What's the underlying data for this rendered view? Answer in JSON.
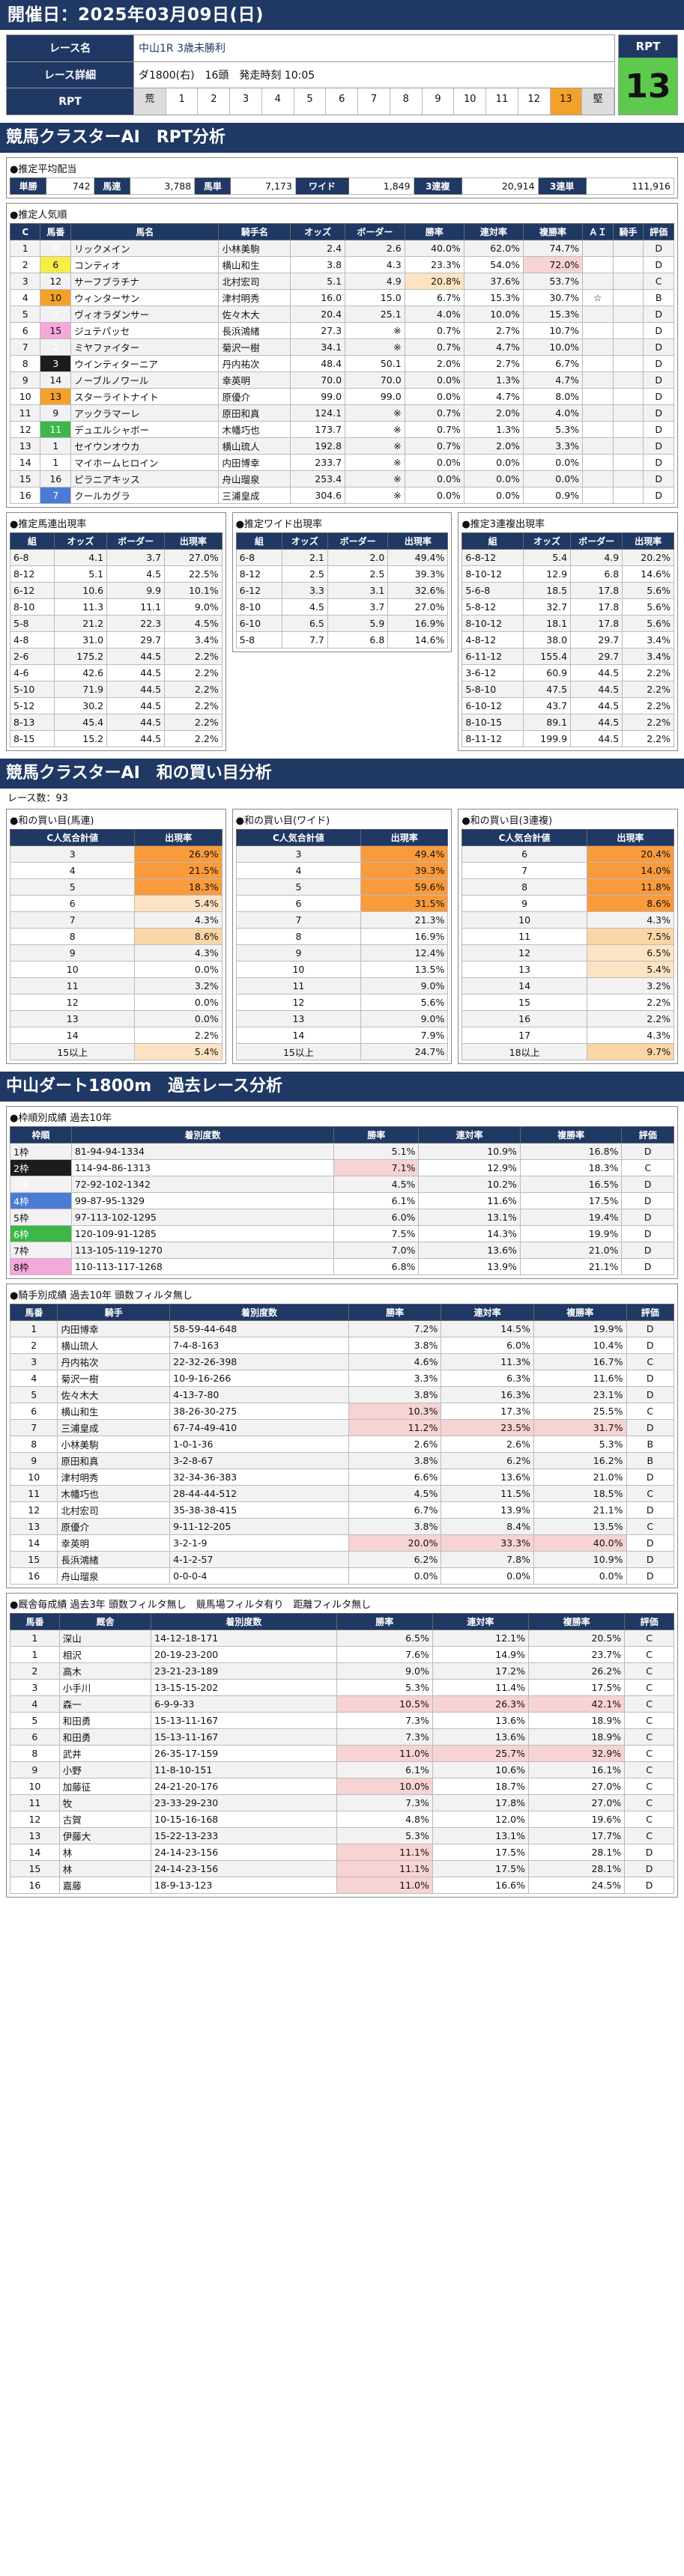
{
  "header": {
    "date": "開催日：2025年03月09日(日)"
  },
  "race": {
    "label_name": "レース名",
    "name": "中山1R 3歳未勝利",
    "label_detail": "レース詳細",
    "detail": "ダ1800(右)　16頭　発走時刻 10:05",
    "label_rpt": "RPT",
    "rpt_cells": [
      "荒",
      "1",
      "2",
      "3",
      "4",
      "5",
      "6",
      "7",
      "8",
      "9",
      "10",
      "11",
      "12",
      "13",
      "堅"
    ],
    "rpt_title": "RPT",
    "rpt_value": "13"
  },
  "s1": {
    "title": "競馬クラスターAI　RPT分析"
  },
  "payout": {
    "title": "●推定平均配当",
    "items": [
      [
        "単勝",
        "742"
      ],
      [
        "馬連",
        "3,788"
      ],
      [
        "馬単",
        "7,173"
      ],
      [
        "ワイド",
        "1,849"
      ],
      [
        "3連複",
        "20,914"
      ],
      [
        "3連単",
        "111,916"
      ]
    ]
  },
  "pop": {
    "title": "●推定人気順",
    "headers": [
      "C",
      "馬番",
      "馬名",
      "騎手名",
      "オッズ",
      "ボーダー",
      "勝率",
      "連対率",
      "複勝率",
      "ＡＩ",
      "騎手",
      "評価"
    ],
    "rows": [
      [
        "1",
        "8",
        "リックメイン",
        "小林美駒",
        "2.4",
        "2.6",
        "40.0%",
        "62.0%",
        "74.7%",
        "",
        "",
        "D",
        6,
        false
      ],
      [
        "2",
        "6",
        "コンティオ",
        "横山和生",
        "3.8",
        "4.3",
        "23.3%",
        "54.0%",
        "72.0%",
        "",
        "",
        "D",
        5,
        false
      ],
      [
        "3",
        "12",
        "サーフブラチナ",
        "北村宏司",
        "5.1",
        "4.9",
        "20.8%",
        "37.6%",
        "53.7%",
        "",
        "",
        "C",
        8,
        true
      ],
      [
        "4",
        "10",
        "ウィンターサン",
        "津村明秀",
        "16.0",
        "15.0",
        "6.7%",
        "15.3%",
        "30.7%",
        "☆",
        "",
        "B",
        7,
        false
      ],
      [
        "5",
        "4",
        "ヴィオラダンサー",
        "佐々木大",
        "20.4",
        "25.1",
        "4.0%",
        "10.0%",
        "15.3%",
        "",
        "",
        "D",
        3,
        false
      ],
      [
        "6",
        "15",
        "ジュテパッセ",
        "長浜鴻緒",
        "27.3",
        "※",
        "0.7%",
        "2.7%",
        "10.7%",
        "",
        "",
        "D",
        8,
        false
      ],
      [
        "7",
        "2",
        "ミヤファイター",
        "菊沢一樹",
        "34.1",
        "※",
        "0.7%",
        "4.7%",
        "10.0%",
        "",
        "",
        "D",
        2,
        false
      ],
      [
        "8",
        "3",
        "ウインティターニア",
        "丹内祐次",
        "48.4",
        "50.1",
        "2.0%",
        "2.7%",
        "6.7%",
        "",
        "",
        "D",
        2,
        false
      ],
      [
        "9",
        "14",
        "ノーブルノワール",
        "幸英明",
        "70.0",
        "70.0",
        "0.0%",
        "1.3%",
        "4.7%",
        "",
        "",
        "D",
        7,
        false
      ],
      [
        "10",
        "13",
        "スターライトナイト",
        "原優介",
        "99.0",
        "99.0",
        "0.0%",
        "4.7%",
        "8.0%",
        "",
        "",
        "D",
        7,
        false
      ],
      [
        "11",
        "9",
        "アックラマーレ",
        "原田和真",
        "124.1",
        "※",
        "0.7%",
        "2.0%",
        "4.0%",
        "",
        "",
        "D",
        5,
        false
      ],
      [
        "12",
        "11",
        "デュエルシャボー",
        "木幡巧也",
        "173.7",
        "※",
        "0.7%",
        "1.3%",
        "5.3%",
        "",
        "",
        "D",
        6,
        false
      ],
      [
        "13",
        "1",
        "セイウンオウカ",
        "横山琉人",
        "192.8",
        "※",
        "0.7%",
        "2.0%",
        "3.3%",
        "",
        "",
        "D",
        1,
        false
      ],
      [
        "14",
        "1",
        "マイホームヒロイン",
        "内田博幸",
        "233.7",
        "※",
        "0.0%",
        "0.0%",
        "0.0%",
        "",
        "",
        "D",
        1,
        false
      ],
      [
        "15",
        "16",
        "ピラニアキッス",
        "舟山瑠泉",
        "253.4",
        "※",
        "0.0%",
        "0.0%",
        "0.0%",
        "",
        "",
        "D",
        8,
        false
      ],
      [
        "16",
        "7",
        "クールカグラ",
        "三浦皇成",
        "304.6",
        "※",
        "0.0%",
        "0.0%",
        "0.9%",
        "",
        "",
        "D",
        4,
        false
      ]
    ]
  },
  "umaren": {
    "title": "●推定馬連出現率",
    "headers": [
      "組",
      "オッズ",
      "ボーダー",
      "出現率"
    ],
    "rows": [
      [
        "6-8",
        "4.1",
        "3.7",
        "27.0%"
      ],
      [
        "8-12",
        "5.1",
        "4.5",
        "22.5%"
      ],
      [
        "6-12",
        "10.6",
        "9.9",
        "10.1%"
      ],
      [
        "8-10",
        "11.3",
        "11.1",
        "9.0%"
      ],
      [
        "5-8",
        "21.2",
        "22.3",
        "4.5%"
      ],
      [
        "4-8",
        "31.0",
        "29.7",
        "3.4%"
      ],
      [
        "2-6",
        "175.2",
        "44.5",
        "2.2%"
      ],
      [
        "4-6",
        "42.6",
        "44.5",
        "2.2%"
      ],
      [
        "5-10",
        "71.9",
        "44.5",
        "2.2%"
      ],
      [
        "5-12",
        "30.2",
        "44.5",
        "2.2%"
      ],
      [
        "8-13",
        "45.4",
        "44.5",
        "2.2%"
      ],
      [
        "8-15",
        "15.2",
        "44.5",
        "2.2%"
      ]
    ]
  },
  "wide": {
    "title": "●推定ワイド出現率",
    "headers": [
      "組",
      "オッズ",
      "ボーダー",
      "出現率"
    ],
    "rows": [
      [
        "6-8",
        "2.1",
        "2.0",
        "49.4%"
      ],
      [
        "8-12",
        "2.5",
        "2.5",
        "39.3%"
      ],
      [
        "6-12",
        "3.3",
        "3.1",
        "32.6%"
      ],
      [
        "8-10",
        "4.5",
        "3.7",
        "27.0%"
      ],
      [
        "6-10",
        "6.5",
        "5.9",
        "16.9%"
      ],
      [
        "5-8",
        "7.7",
        "6.8",
        "14.6%"
      ]
    ]
  },
  "sanfuku": {
    "title": "●推定3連複出現率",
    "headers": [
      "組",
      "オッズ",
      "ボーダー",
      "出現率"
    ],
    "rows": [
      [
        "6-8-12",
        "5.4",
        "4.9",
        "20.2%"
      ],
      [
        "8-10-12",
        "12.9",
        "6.8",
        "14.6%"
      ],
      [
        "5-6-8",
        "18.5",
        "17.8",
        "5.6%"
      ],
      [
        "5-8-12",
        "32.7",
        "17.8",
        "5.6%"
      ],
      [
        "8-10-12",
        "18.1",
        "17.8",
        "5.6%"
      ],
      [
        "4-8-12",
        "38.0",
        "29.7",
        "3.4%"
      ],
      [
        "6-11-12",
        "155.4",
        "29.7",
        "3.4%"
      ],
      [
        "3-6-12",
        "60.9",
        "44.5",
        "2.2%"
      ],
      [
        "5-8-10",
        "47.5",
        "44.5",
        "2.2%"
      ],
      [
        "6-10-12",
        "43.7",
        "44.5",
        "2.2%"
      ],
      [
        "8-10-15",
        "89.1",
        "44.5",
        "2.2%"
      ],
      [
        "8-11-12",
        "199.9",
        "44.5",
        "2.2%"
      ]
    ]
  },
  "s2": {
    "title": "競馬クラスターAI　和の買い目分析",
    "count": "レース数：93"
  },
  "sum_umaren": {
    "title": "●和の買い目(馬連)",
    "h1": "C人気合計値",
    "h2": "出現率",
    "rows": [
      [
        "3",
        "26.9%",
        1
      ],
      [
        "4",
        "21.5%",
        1
      ],
      [
        "5",
        "18.3%",
        1
      ],
      [
        "6",
        "5.4%",
        3
      ],
      [
        "7",
        "4.3%",
        0
      ],
      [
        "8",
        "8.6%",
        2
      ],
      [
        "9",
        "4.3%",
        0
      ],
      [
        "10",
        "0.0%",
        0
      ],
      [
        "11",
        "3.2%",
        0
      ],
      [
        "12",
        "0.0%",
        0
      ],
      [
        "13",
        "0.0%",
        0
      ],
      [
        "14",
        "2.2%",
        0
      ],
      [
        "15以上",
        "5.4%",
        3
      ]
    ]
  },
  "sum_wide": {
    "title": "●和の買い目(ワイド)",
    "h1": "C人気合計値",
    "h2": "出現率",
    "rows": [
      [
        "3",
        "49.4%",
        1
      ],
      [
        "4",
        "39.3%",
        1
      ],
      [
        "5",
        "59.6%",
        1
      ],
      [
        "6",
        "31.5%",
        1
      ],
      [
        "7",
        "21.3%",
        0
      ],
      [
        "8",
        "16.9%",
        0
      ],
      [
        "9",
        "12.4%",
        0
      ],
      [
        "10",
        "13.5%",
        0
      ],
      [
        "11",
        "9.0%",
        0
      ],
      [
        "12",
        "5.6%",
        0
      ],
      [
        "13",
        "9.0%",
        0
      ],
      [
        "14",
        "7.9%",
        0
      ],
      [
        "15以上",
        "24.7%",
        0
      ]
    ]
  },
  "sum_sanfuku": {
    "title": "●和の買い目(3連複)",
    "h1": "C人気合計値",
    "h2": "出現率",
    "rows": [
      [
        "6",
        "20.4%",
        1
      ],
      [
        "7",
        "14.0%",
        1
      ],
      [
        "8",
        "11.8%",
        1
      ],
      [
        "9",
        "8.6%",
        1
      ],
      [
        "10",
        "4.3%",
        0
      ],
      [
        "11",
        "7.5%",
        2
      ],
      [
        "12",
        "6.5%",
        3
      ],
      [
        "13",
        "5.4%",
        3
      ],
      [
        "14",
        "3.2%",
        0
      ],
      [
        "15",
        "2.2%",
        0
      ],
      [
        "16",
        "2.2%",
        0
      ],
      [
        "17",
        "4.3%",
        0
      ],
      [
        "18以上",
        "9.7%",
        2
      ]
    ]
  },
  "s3": {
    "title": "中山ダート1800m　過去レース分析"
  },
  "waku": {
    "title": "●枠順別成績 過去10年",
    "headers": [
      "枠順",
      "着別度数",
      "勝率",
      "連対率",
      "複勝率",
      "評価"
    ],
    "rows": [
      [
        "1枠",
        "81-94-94-1334",
        "5.1%",
        "10.9%",
        "16.8%",
        "D",
        1
      ],
      [
        "2枠",
        "114-94-86-1313",
        "7.1%",
        "12.9%",
        "18.3%",
        "C",
        2
      ],
      [
        "3枠",
        "72-92-102-1342",
        "4.5%",
        "10.2%",
        "16.5%",
        "D",
        3
      ],
      [
        "4枠",
        "99-87-95-1329",
        "6.1%",
        "11.6%",
        "17.5%",
        "D",
        4
      ],
      [
        "5枠",
        "97-113-102-1295",
        "6.0%",
        "13.1%",
        "19.4%",
        "D",
        5
      ],
      [
        "6枠",
        "120-109-91-1285",
        "7.5%",
        "14.3%",
        "19.9%",
        "D",
        6
      ],
      [
        "7枠",
        "113-105-119-1270",
        "7.0%",
        "13.6%",
        "21.0%",
        "D",
        7
      ],
      [
        "8枠",
        "110-113-117-1268",
        "6.8%",
        "13.9%",
        "21.1%",
        "D",
        8
      ]
    ]
  },
  "jockey": {
    "title": "●騎手別成績 過去10年 頭数フィルタ無し",
    "headers": [
      "馬番",
      "騎手",
      "着別度数",
      "勝率",
      "連対率",
      "複勝率",
      "評価"
    ],
    "rows": [
      [
        "1",
        "内田博幸",
        "58-59-44-648",
        "7.2%",
        "14.5%",
        "19.9%",
        "D"
      ],
      [
        "2",
        "横山琉人",
        "7-4-8-163",
        "3.8%",
        "6.0%",
        "10.4%",
        "D"
      ],
      [
        "3",
        "丹内祐次",
        "22-32-26-398",
        "4.6%",
        "11.3%",
        "16.7%",
        "C"
      ],
      [
        "4",
        "菊沢一樹",
        "10-9-16-266",
        "3.3%",
        "6.3%",
        "11.6%",
        "D"
      ],
      [
        "5",
        "佐々木大",
        "4-13-7-80",
        "3.8%",
        "16.3%",
        "23.1%",
        "D"
      ],
      [
        "6",
        "横山和生",
        "38-26-30-275",
        "10.3%",
        "17.3%",
        "25.5%",
        "C"
      ],
      [
        "7",
        "三浦皇成",
        "67-74-49-410",
        "11.2%",
        "23.5%",
        "31.7%",
        "D"
      ],
      [
        "8",
        "小林美駒",
        "1-0-1-36",
        "2.6%",
        "2.6%",
        "5.3%",
        "B"
      ],
      [
        "9",
        "原田和真",
        "3-2-8-67",
        "3.8%",
        "6.2%",
        "16.2%",
        "B"
      ],
      [
        "10",
        "津村明秀",
        "32-34-36-383",
        "6.6%",
        "13.6%",
        "21.0%",
        "D"
      ],
      [
        "11",
        "木幡巧也",
        "28-44-44-512",
        "4.5%",
        "11.5%",
        "18.5%",
        "C"
      ],
      [
        "12",
        "北村宏司",
        "35-38-38-415",
        "6.7%",
        "13.9%",
        "21.1%",
        "D"
      ],
      [
        "13",
        "原優介",
        "9-11-12-205",
        "3.8%",
        "8.4%",
        "13.5%",
        "C"
      ],
      [
        "14",
        "幸英明",
        "3-2-1-9",
        "20.0%",
        "33.3%",
        "40.0%",
        "D"
      ],
      [
        "15",
        "長浜鴻緒",
        "4-1-2-57",
        "6.2%",
        "7.8%",
        "10.9%",
        "D"
      ],
      [
        "16",
        "舟山瑠泉",
        "0-0-0-4",
        "0.0%",
        "0.0%",
        "0.0%",
        "D"
      ]
    ]
  },
  "trainer": {
    "title": "●厩舎毎成績 過去3年 頭数フィルタ無し　競馬場フィルタ有り　距離フィルタ無し",
    "headers": [
      "馬番",
      "厩舎",
      "着別度数",
      "勝率",
      "連対率",
      "複勝率",
      "評価"
    ],
    "rows": [
      [
        "1",
        "深山",
        "14-12-18-171",
        "6.5%",
        "12.1%",
        "20.5%",
        "C"
      ],
      [
        "1",
        "相沢",
        "20-19-23-200",
        "7.6%",
        "14.9%",
        "23.7%",
        "C"
      ],
      [
        "2",
        "高木",
        "23-21-23-189",
        "9.0%",
        "17.2%",
        "26.2%",
        "C"
      ],
      [
        "3",
        "小手川",
        "13-15-15-202",
        "5.3%",
        "11.4%",
        "17.5%",
        "C"
      ],
      [
        "4",
        "森一",
        "6-9-9-33",
        "10.5%",
        "26.3%",
        "42.1%",
        "C"
      ],
      [
        "5",
        "和田勇",
        "15-13-11-167",
        "7.3%",
        "13.6%",
        "18.9%",
        "C"
      ],
      [
        "6",
        "和田勇",
        "15-13-11-167",
        "7.3%",
        "13.6%",
        "18.9%",
        "C"
      ],
      [
        "8",
        "武井",
        "26-35-17-159",
        "11.0%",
        "25.7%",
        "32.9%",
        "C"
      ],
      [
        "9",
        "小野",
        "11-8-10-151",
        "6.1%",
        "10.6%",
        "16.1%",
        "C"
      ],
      [
        "10",
        "加藤征",
        "24-21-20-176",
        "10.0%",
        "18.7%",
        "27.0%",
        "C"
      ],
      [
        "11",
        "牧",
        "23-33-29-230",
        "7.3%",
        "17.8%",
        "27.0%",
        "C"
      ],
      [
        "12",
        "古賀",
        "10-15-16-168",
        "4.8%",
        "12.0%",
        "19.6%",
        "C"
      ],
      [
        "13",
        "伊藤大",
        "15-22-13-233",
        "5.3%",
        "13.1%",
        "17.7%",
        "C"
      ],
      [
        "14",
        "林",
        "24-14-23-156",
        "11.1%",
        "17.5%",
        "28.1%",
        "D"
      ],
      [
        "15",
        "林",
        "24-14-23-156",
        "11.1%",
        "17.5%",
        "28.1%",
        "D"
      ],
      [
        "16",
        "嘉藤",
        "18-9-13-123",
        "11.0%",
        "16.6%",
        "24.5%",
        "D"
      ]
    ]
  }
}
